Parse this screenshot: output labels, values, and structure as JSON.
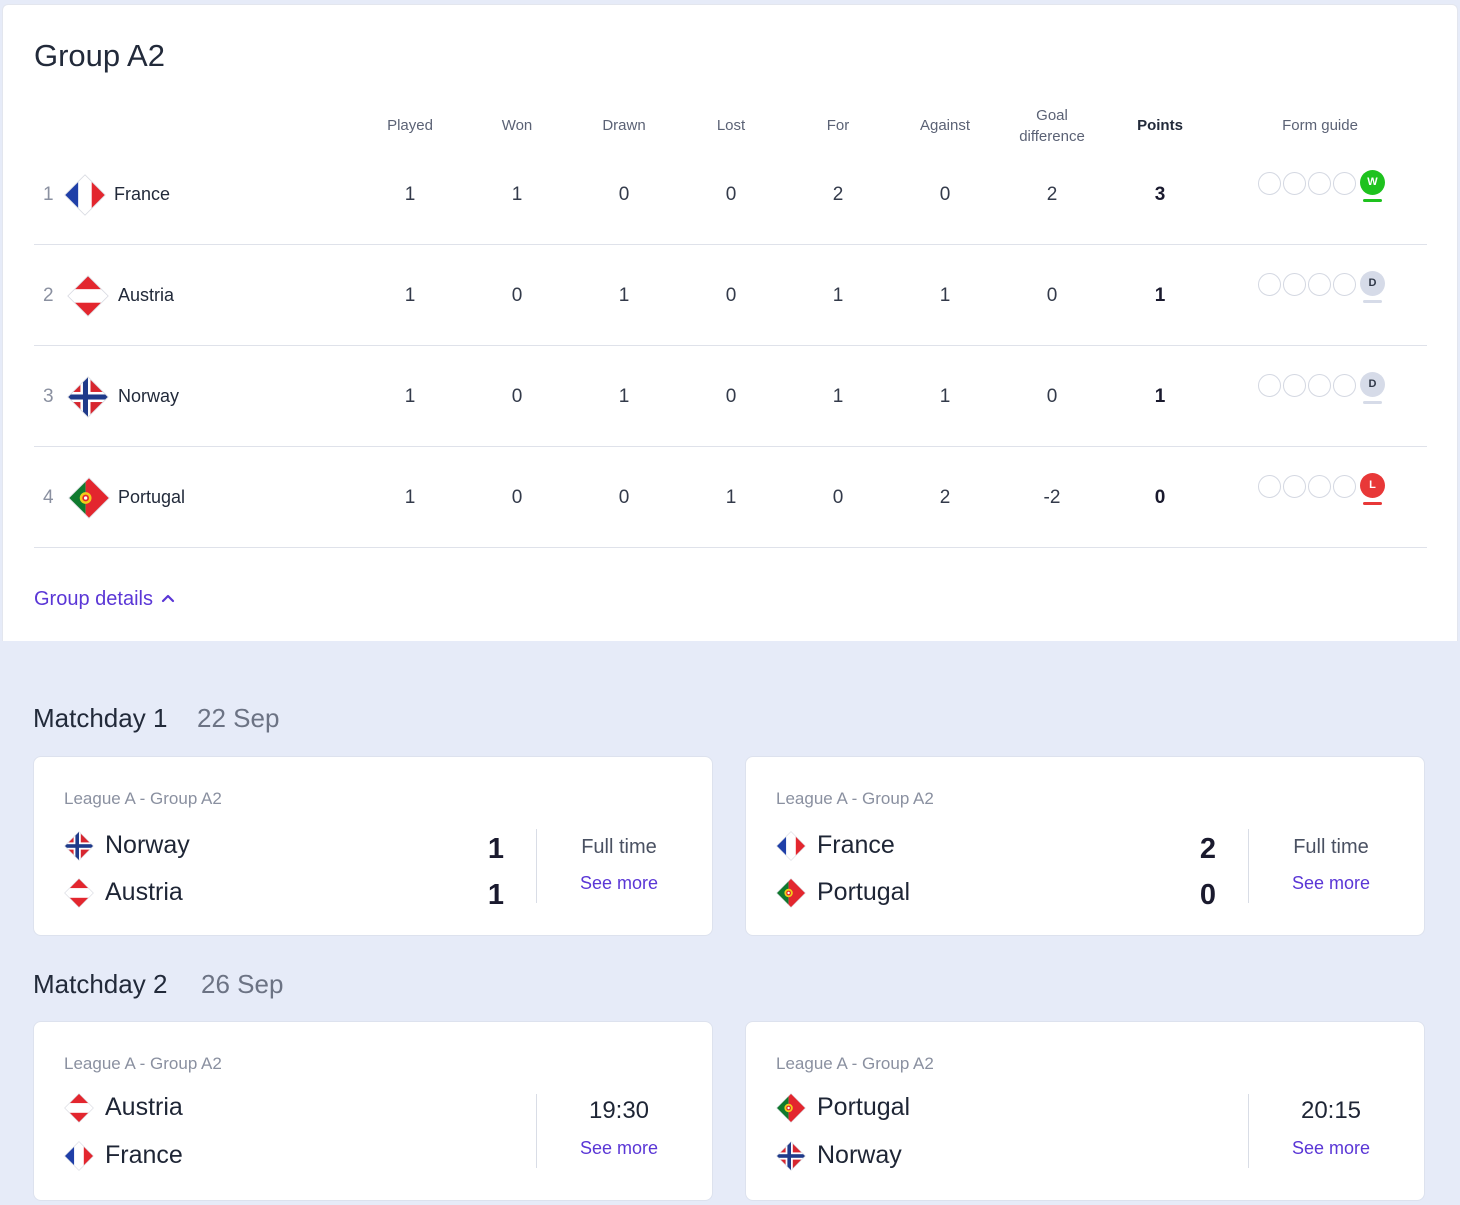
{
  "group": {
    "title": "Group A2",
    "headers": {
      "played": "Played",
      "won": "Won",
      "drawn": "Drawn",
      "lost": "Lost",
      "for": "For",
      "against": "Against",
      "gd_line1": "Goal",
      "gd_line2": "difference",
      "points": "Points",
      "form": "Form guide"
    },
    "rows": [
      {
        "rank": "1",
        "team": "France",
        "flag": "france-flag-icon",
        "played": "1",
        "won": "1",
        "drawn": "0",
        "lost": "0",
        "for": "2",
        "against": "0",
        "gd": "2",
        "points": "3",
        "form_result": "W"
      },
      {
        "rank": "2",
        "team": "Austria",
        "flag": "austria-flag-icon",
        "played": "1",
        "won": "0",
        "drawn": "1",
        "lost": "0",
        "for": "1",
        "against": "1",
        "gd": "0",
        "points": "1",
        "form_result": "D"
      },
      {
        "rank": "3",
        "team": "Norway",
        "flag": "norway-flag-icon",
        "played": "1",
        "won": "0",
        "drawn": "1",
        "lost": "0",
        "for": "1",
        "against": "1",
        "gd": "0",
        "points": "1",
        "form_result": "D"
      },
      {
        "rank": "4",
        "team": "Portugal",
        "flag": "portugal-flag-icon",
        "played": "1",
        "won": "0",
        "drawn": "0",
        "lost": "1",
        "for": "0",
        "against": "2",
        "gd": "-2",
        "points": "0",
        "form_result": "L"
      }
    ],
    "details_label": "Group details",
    "colors": {
      "win": "#1ec21e",
      "draw": "#d6dbe8",
      "loss": "#e83838",
      "link": "#5a36d6"
    }
  },
  "matchdays": [
    {
      "title": "Matchday 1",
      "date": "22 Sep",
      "matches": [
        {
          "league": "League A - Group A2",
          "home": "Norway",
          "away": "Austria",
          "home_score": "1",
          "away_score": "1",
          "status": "Full time",
          "more": "See more"
        },
        {
          "league": "League A - Group A2",
          "home": "France",
          "away": "Portugal",
          "home_score": "2",
          "away_score": "0",
          "status": "Full time",
          "more": "See more"
        }
      ]
    },
    {
      "title": "Matchday 2",
      "date": "26 Sep",
      "matches": [
        {
          "league": "League A - Group A2",
          "home": "Austria",
          "away": "France",
          "time": "19:30",
          "more": "See more"
        },
        {
          "league": "League A - Group A2",
          "home": "Portugal",
          "away": "Norway",
          "time": "20:15",
          "more": "See more"
        }
      ]
    }
  ]
}
